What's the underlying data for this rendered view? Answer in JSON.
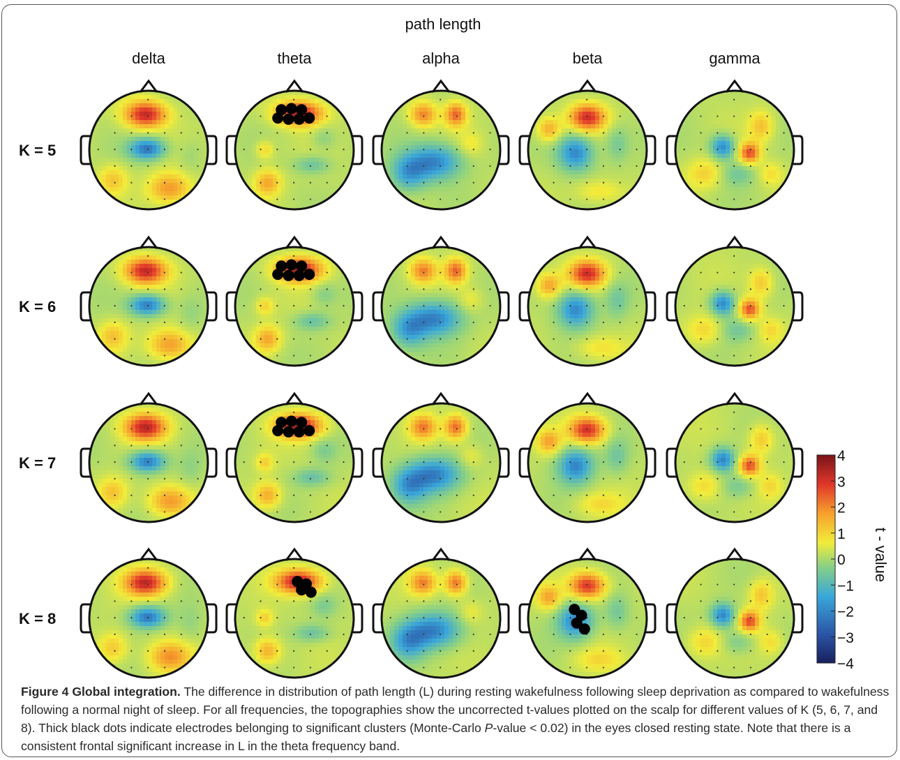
{
  "figure": {
    "title": "path length",
    "columns": [
      "delta",
      "theta",
      "alpha",
      "beta",
      "gamma"
    ],
    "rows": [
      "K = 5",
      "K = 6",
      "K = 7",
      "K = 8"
    ],
    "colorbar": {
      "label": "t - value",
      "ticks": [
        "4",
        "3",
        "2",
        "1",
        "0",
        "−1",
        "−2",
        "−3",
        "−4"
      ],
      "range": [
        -4,
        4
      ],
      "colormap": [
        "#17205e",
        "#2b55a6",
        "#3aa7d9",
        "#86cf88",
        "#f2ec3a",
        "#f6a02d",
        "#e0362a",
        "#7a1418"
      ]
    },
    "significant_clusters": [
      {
        "row": "K = 5",
        "column": "theta",
        "dots": 7,
        "region": "frontal"
      },
      {
        "row": "K = 6",
        "column": "theta",
        "dots": 7,
        "region": "frontal"
      },
      {
        "row": "K = 7",
        "column": "theta",
        "dots": 7,
        "region": "frontal"
      },
      {
        "row": "K = 8",
        "column": "theta",
        "dots": 4,
        "region": "frontal"
      },
      {
        "row": "K = 8",
        "column": "beta",
        "dots": 4,
        "region": "central-left"
      }
    ]
  },
  "caption": {
    "label": "Figure 4 Global integration.",
    "text": " The difference in distribution of path length (L) during resting wakefulness following sleep deprivation as compared to wakefulness following a normal night of sleep. For all frequencies, the topographies show the uncorrected t-values plotted on the scalp for different values of K (5, 6, 7, and 8). Thick black dots indicate electrodes belonging to significant clusters (Monte-Carlo ",
    "italic": "P",
    "text_end": "-value < 0.02) in the eyes closed resting state. Note that there is a consistent frontal significant increase in L in the theta frequency band."
  }
}
